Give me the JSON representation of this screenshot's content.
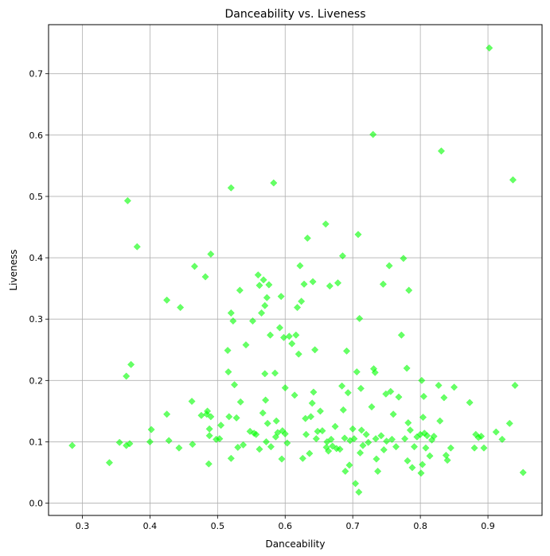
{
  "chart_data": {
    "type": "scatter",
    "title": "Danceability vs. Liveness",
    "xlabel": "Danceability",
    "ylabel": "Liveness",
    "xlim": [
      0.25,
      0.98
    ],
    "ylim": [
      -0.02,
      0.78
    ],
    "xticks": [
      0.3,
      0.4,
      0.5,
      0.6,
      0.7,
      0.8,
      0.9
    ],
    "xtick_labels": [
      "0.3",
      "0.4",
      "0.5",
      "0.6",
      "0.7",
      "0.8",
      "0.9"
    ],
    "yticks": [
      0.0,
      0.1,
      0.2,
      0.3,
      0.4,
      0.5,
      0.6,
      0.7
    ],
    "ytick_labels": [
      "0.0",
      "0.1",
      "0.2",
      "0.3",
      "0.4",
      "0.5",
      "0.6",
      "0.7"
    ],
    "grid": true,
    "marker": "diamond",
    "color": "#00ff00",
    "points": [
      [
        0.285,
        0.094
      ],
      [
        0.34,
        0.066
      ],
      [
        0.355,
        0.099
      ],
      [
        0.365,
        0.094
      ],
      [
        0.365,
        0.207
      ],
      [
        0.367,
        0.493
      ],
      [
        0.37,
        0.097
      ],
      [
        0.372,
        0.226
      ],
      [
        0.381,
        0.418
      ],
      [
        0.4,
        0.1
      ],
      [
        0.402,
        0.12
      ],
      [
        0.425,
        0.331
      ],
      [
        0.425,
        0.145
      ],
      [
        0.428,
        0.102
      ],
      [
        0.443,
        0.09
      ],
      [
        0.445,
        0.319
      ],
      [
        0.462,
        0.166
      ],
      [
        0.463,
        0.096
      ],
      [
        0.466,
        0.386
      ],
      [
        0.476,
        0.143
      ],
      [
        0.482,
        0.369
      ],
      [
        0.484,
        0.145
      ],
      [
        0.485,
        0.15
      ],
      [
        0.487,
        0.064
      ],
      [
        0.488,
        0.11
      ],
      [
        0.488,
        0.121
      ],
      [
        0.49,
        0.406
      ],
      [
        0.49,
        0.141
      ],
      [
        0.498,
        0.104
      ],
      [
        0.503,
        0.105
      ],
      [
        0.505,
        0.127
      ],
      [
        0.515,
        0.249
      ],
      [
        0.516,
        0.214
      ],
      [
        0.517,
        0.141
      ],
      [
        0.52,
        0.31
      ],
      [
        0.52,
        0.514
      ],
      [
        0.52,
        0.073
      ],
      [
        0.523,
        0.297
      ],
      [
        0.525,
        0.193
      ],
      [
        0.528,
        0.139
      ],
      [
        0.53,
        0.091
      ],
      [
        0.533,
        0.347
      ],
      [
        0.534,
        0.165
      ],
      [
        0.538,
        0.095
      ],
      [
        0.542,
        0.258
      ],
      [
        0.548,
        0.117
      ],
      [
        0.552,
        0.297
      ],
      [
        0.554,
        0.114
      ],
      [
        0.557,
        0.112
      ],
      [
        0.56,
        0.372
      ],
      [
        0.562,
        0.355
      ],
      [
        0.562,
        0.088
      ],
      [
        0.565,
        0.31
      ],
      [
        0.567,
        0.147
      ],
      [
        0.568,
        0.364
      ],
      [
        0.57,
        0.322
      ],
      [
        0.57,
        0.211
      ],
      [
        0.571,
        0.168
      ],
      [
        0.572,
        0.1
      ],
      [
        0.573,
        0.335
      ],
      [
        0.574,
        0.13
      ],
      [
        0.576,
        0.356
      ],
      [
        0.578,
        0.274
      ],
      [
        0.579,
        0.092
      ],
      [
        0.583,
        0.522
      ],
      [
        0.585,
        0.212
      ],
      [
        0.586,
        0.108
      ],
      [
        0.587,
        0.134
      ],
      [
        0.589,
        0.115
      ],
      [
        0.592,
        0.286
      ],
      [
        0.594,
        0.337
      ],
      [
        0.595,
        0.072
      ],
      [
        0.596,
        0.118
      ],
      [
        0.598,
        0.27
      ],
      [
        0.6,
        0.188
      ],
      [
        0.6,
        0.113
      ],
      [
        0.603,
        0.098
      ],
      [
        0.606,
        0.272
      ],
      [
        0.61,
        0.26
      ],
      [
        0.614,
        0.176
      ],
      [
        0.616,
        0.274
      ],
      [
        0.618,
        0.319
      ],
      [
        0.62,
        0.243
      ],
      [
        0.622,
        0.387
      ],
      [
        0.624,
        0.329
      ],
      [
        0.626,
        0.073
      ],
      [
        0.628,
        0.357
      ],
      [
        0.63,
        0.138
      ],
      [
        0.631,
        0.112
      ],
      [
        0.633,
        0.432
      ],
      [
        0.636,
        0.081
      ],
      [
        0.638,
        0.141
      ],
      [
        0.64,
        0.163
      ],
      [
        0.641,
        0.361
      ],
      [
        0.642,
        0.181
      ],
      [
        0.644,
        0.25
      ],
      [
        0.646,
        0.105
      ],
      [
        0.648,
        0.117
      ],
      [
        0.652,
        0.15
      ],
      [
        0.655,
        0.118
      ],
      [
        0.66,
        0.455
      ],
      [
        0.661,
        0.091
      ],
      [
        0.662,
        0.1
      ],
      [
        0.664,
        0.085
      ],
      [
        0.666,
        0.354
      ],
      [
        0.668,
        0.104
      ],
      [
        0.67,
        0.093
      ],
      [
        0.674,
        0.125
      ],
      [
        0.676,
        0.089
      ],
      [
        0.678,
        0.359
      ],
      [
        0.681,
        0.088
      ],
      [
        0.684,
        0.191
      ],
      [
        0.685,
        0.403
      ],
      [
        0.686,
        0.152
      ],
      [
        0.688,
        0.106
      ],
      [
        0.689,
        0.052
      ],
      [
        0.691,
        0.248
      ],
      [
        0.693,
        0.18
      ],
      [
        0.695,
        0.062
      ],
      [
        0.696,
        0.102
      ],
      [
        0.7,
        0.121
      ],
      [
        0.702,
        0.105
      ],
      [
        0.704,
        0.032
      ],
      [
        0.706,
        0.214
      ],
      [
        0.708,
        0.438
      ],
      [
        0.709,
        0.018
      ],
      [
        0.71,
        0.301
      ],
      [
        0.711,
        0.082
      ],
      [
        0.712,
        0.187
      ],
      [
        0.713,
        0.119
      ],
      [
        0.715,
        0.094
      ],
      [
        0.72,
        0.112
      ],
      [
        0.723,
        0.099
      ],
      [
        0.728,
        0.157
      ],
      [
        0.73,
        0.601
      ],
      [
        0.731,
        0.219
      ],
      [
        0.733,
        0.213
      ],
      [
        0.734,
        0.105
      ],
      [
        0.735,
        0.072
      ],
      [
        0.737,
        0.052
      ],
      [
        0.742,
        0.11
      ],
      [
        0.745,
        0.357
      ],
      [
        0.746,
        0.087
      ],
      [
        0.749,
        0.178
      ],
      [
        0.75,
        0.101
      ],
      [
        0.754,
        0.387
      ],
      [
        0.756,
        0.182
      ],
      [
        0.758,
        0.104
      ],
      [
        0.76,
        0.145
      ],
      [
        0.764,
        0.092
      ],
      [
        0.768,
        0.173
      ],
      [
        0.772,
        0.274
      ],
      [
        0.775,
        0.399
      ],
      [
        0.777,
        0.105
      ],
      [
        0.78,
        0.22
      ],
      [
        0.781,
        0.069
      ],
      [
        0.782,
        0.131
      ],
      [
        0.783,
        0.347
      ],
      [
        0.785,
        0.119
      ],
      [
        0.788,
        0.058
      ],
      [
        0.791,
        0.092
      ],
      [
        0.795,
        0.108
      ],
      [
        0.8,
        0.112
      ],
      [
        0.801,
        0.049
      ],
      [
        0.802,
        0.2
      ],
      [
        0.803,
        0.063
      ],
      [
        0.804,
        0.14
      ],
      [
        0.805,
        0.174
      ],
      [
        0.806,
        0.114
      ],
      [
        0.808,
        0.09
      ],
      [
        0.81,
        0.11
      ],
      [
        0.814,
        0.077
      ],
      [
        0.817,
        0.103
      ],
      [
        0.82,
        0.109
      ],
      [
        0.827,
        0.192
      ],
      [
        0.829,
        0.134
      ],
      [
        0.831,
        0.574
      ],
      [
        0.835,
        0.172
      ],
      [
        0.838,
        0.078
      ],
      [
        0.84,
        0.07
      ],
      [
        0.845,
        0.09
      ],
      [
        0.85,
        0.189
      ],
      [
        0.873,
        0.164
      ],
      [
        0.88,
        0.09
      ],
      [
        0.882,
        0.112
      ],
      [
        0.886,
        0.107
      ],
      [
        0.89,
        0.109
      ],
      [
        0.894,
        0.09
      ],
      [
        0.902,
        0.742
      ],
      [
        0.912,
        0.116
      ],
      [
        0.921,
        0.104
      ],
      [
        0.932,
        0.13
      ],
      [
        0.937,
        0.527
      ],
      [
        0.94,
        0.192
      ],
      [
        0.952,
        0.05
      ]
    ]
  }
}
